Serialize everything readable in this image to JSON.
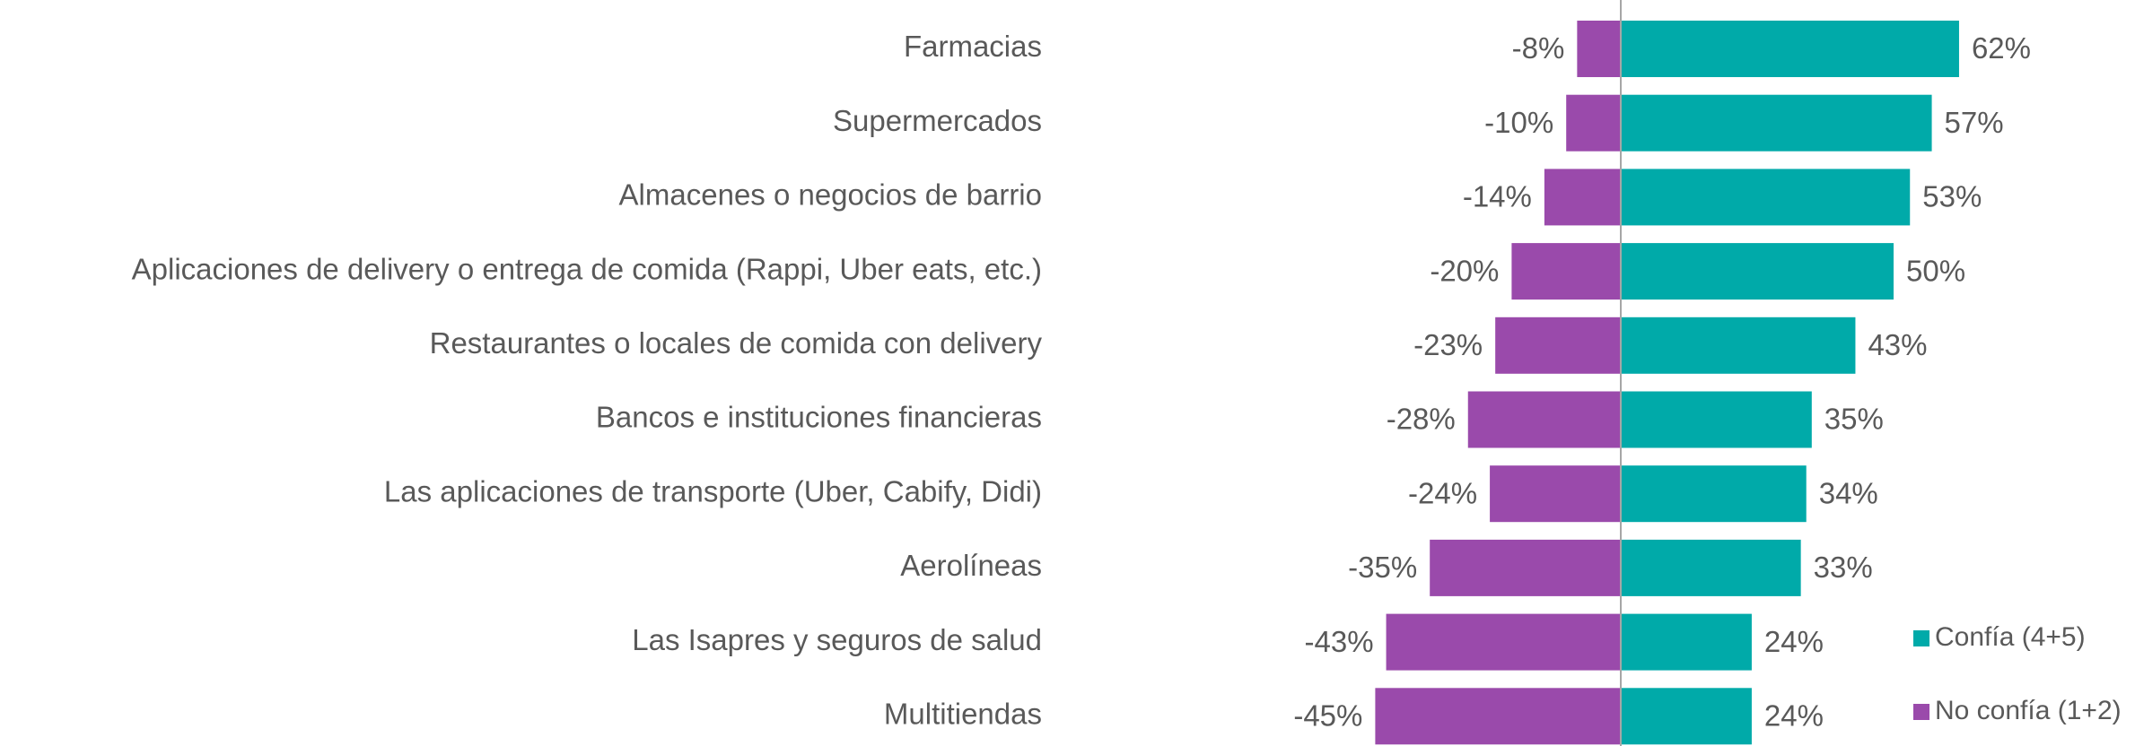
{
  "chart_data": {
    "type": "diverging_bar",
    "categories": [
      "Farmacias",
      "Supermercados",
      "Almacenes o negocios de barrio",
      "Aplicaciones de delivery o entrega de comida (Rappi, Uber eats, etc.)",
      "Restaurantes o locales de comida con delivery",
      "Bancos e instituciones financieras",
      "Las aplicaciones de transporte (Uber, Cabify, Didi)",
      "Aerolíneas",
      "Las Isapres y seguros de salud",
      "Multitiendas"
    ],
    "series": [
      {
        "name": "Confía (4+5)",
        "color": "#00aaa9",
        "values": [
          62,
          57,
          53,
          50,
          43,
          35,
          34,
          33,
          24,
          24
        ],
        "value_labels": [
          "62%",
          "57%",
          "53%",
          "50%",
          "43%",
          "35%",
          "34%",
          "33%",
          "24%",
          "24%"
        ]
      },
      {
        "name": "No confía (1+2)",
        "color": "#9a4aab",
        "values": [
          -8,
          -10,
          -14,
          -20,
          -23,
          -28,
          -24,
          -35,
          -43,
          -45
        ],
        "value_labels": [
          "-8%",
          "-10%",
          "-14%",
          "-20%",
          "-23%",
          "-28%",
          "-24%",
          "-35%",
          "-43%",
          "-45%"
        ]
      }
    ],
    "legend": "bottom-right"
  }
}
